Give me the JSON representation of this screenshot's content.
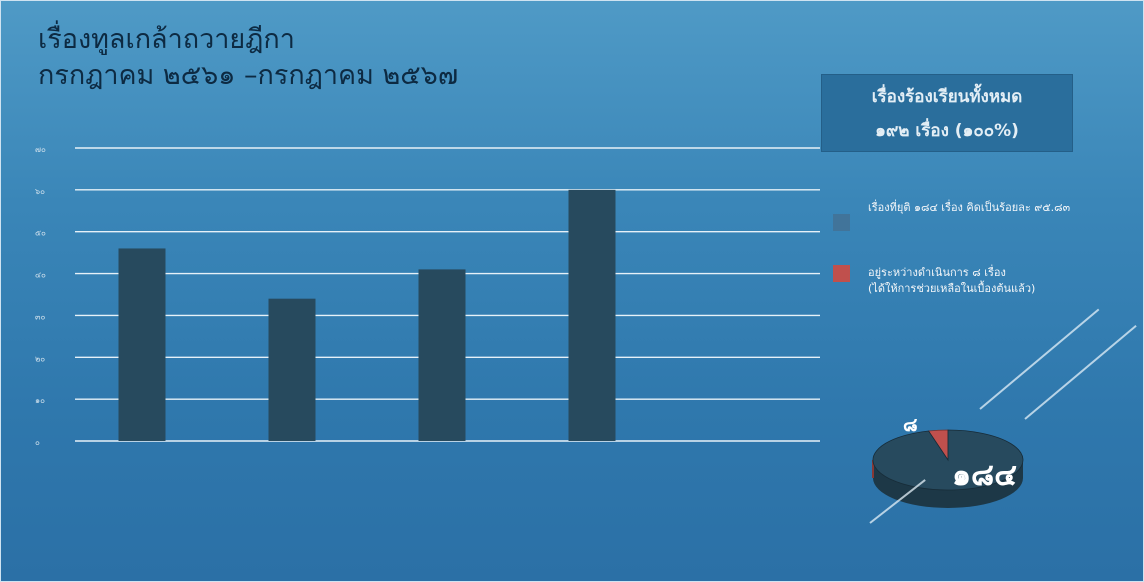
{
  "title": {
    "line1": "เรื่องทูลเกล้าถวายฎีกา",
    "line2": "กรกฎาคม ๒๕๖๑ –กรกฎาคม ๒๕๖๗"
  },
  "summary_box": {
    "line1": "เรื่องร้องเรียนทั้งหมด",
    "line2": "๑๙๒ เรื่อง (๑๐๐%)"
  },
  "legend": [
    {
      "label_line1": "เรื่องที่ยุติ ๑๘๔ เรื่อง คิดเป็นร้อยละ ๙๕.๘๓",
      "label_line2": "",
      "color": "#41749a"
    },
    {
      "label_line1": "อยู่ระหว่างดำเนินการ ๘ เรื่อง",
      "label_line2": "(ได้ให้การช่วยเหลือในเบื้องต้นแล้ว)",
      "color": "#c0504d"
    }
  ],
  "pie_labels": {
    "small": "๘",
    "large": "๑๘๔"
  },
  "chart_data": [
    {
      "type": "bar",
      "categories": [
        "",
        "",
        "",
        ""
      ],
      "values": [
        46,
        34,
        41,
        60
      ],
      "ylim": [
        0,
        70
      ],
      "yticks": [
        "๐",
        "๑๐",
        "๒๐",
        "๓๐",
        "๔๐",
        "๕๐",
        "๖๐",
        "๗๐"
      ],
      "grid": true,
      "bar_color": "#274a5e"
    },
    {
      "type": "pie",
      "values": [
        184,
        8
      ],
      "colors": [
        "#274a5e",
        "#c0504d"
      ],
      "style": "3d"
    }
  ]
}
